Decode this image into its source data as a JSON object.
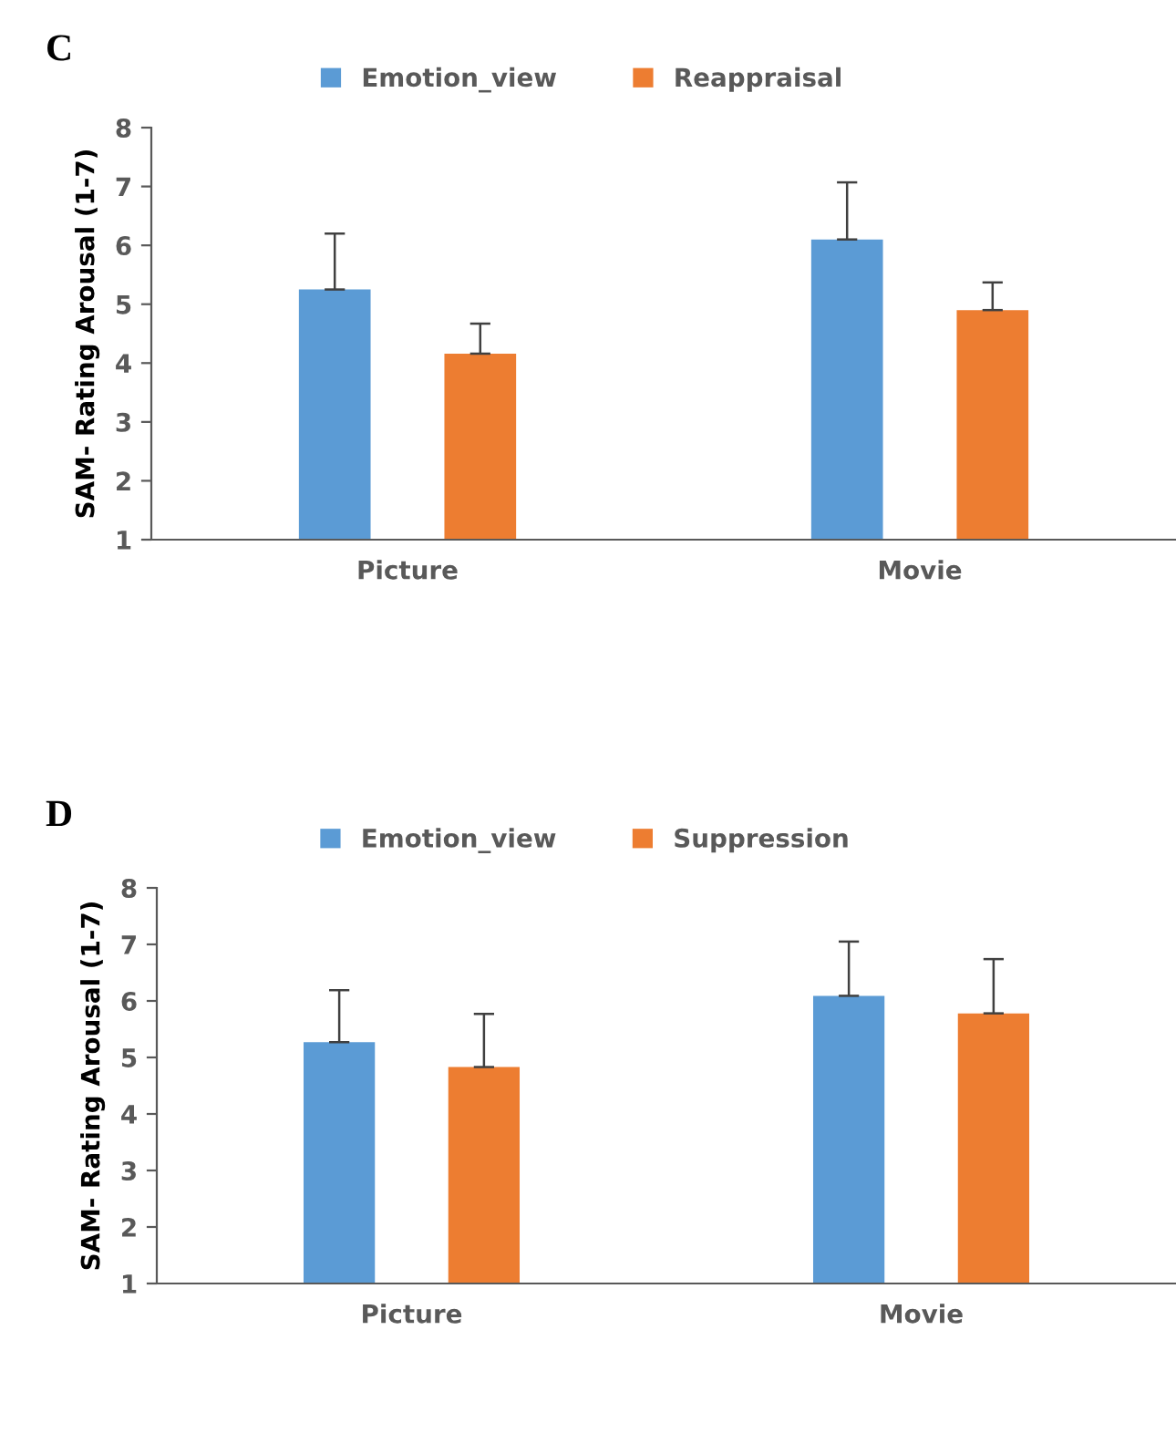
{
  "chart_data": [
    {
      "type": "bar",
      "title": "C",
      "ylabel": "SAM- Rating Arousal (1-7)",
      "categories": [
        "Picture",
        "Movie"
      ],
      "ylim": [
        1,
        8
      ],
      "yticks": [
        1,
        2,
        3,
        4,
        5,
        6,
        7,
        8
      ],
      "grid": false,
      "legend": "top",
      "series": [
        {
          "name": "Emotion_view",
          "color": "#5b9bd5",
          "values": [
            5.25,
            6.1
          ],
          "errors": [
            [
              5.25,
              6.2
            ],
            [
              6.1,
              7.07
            ]
          ]
        },
        {
          "name": "Reappraisal",
          "color": "#ed7d31",
          "values": [
            4.16,
            4.9
          ],
          "errors": [
            [
              4.16,
              4.67
            ],
            [
              4.9,
              5.37
            ]
          ]
        }
      ]
    },
    {
      "type": "bar",
      "title": "D",
      "ylabel": "SAM- Rating Arousal (1-7)",
      "categories": [
        "Picture",
        "Movie"
      ],
      "ylim": [
        1,
        8
      ],
      "yticks": [
        1,
        2,
        3,
        4,
        5,
        6,
        7,
        8
      ],
      "grid": false,
      "legend": "top",
      "series": [
        {
          "name": "Emotion_view",
          "color": "#5b9bd5",
          "values": [
            5.27,
            6.09
          ],
          "errors": [
            [
              5.27,
              6.19
            ],
            [
              6.09,
              7.05
            ]
          ]
        },
        {
          "name": "Suppression",
          "color": "#ed7d31",
          "values": [
            4.83,
            5.78
          ],
          "errors": [
            [
              4.83,
              5.77
            ],
            [
              5.78,
              6.74
            ]
          ]
        }
      ]
    }
  ]
}
